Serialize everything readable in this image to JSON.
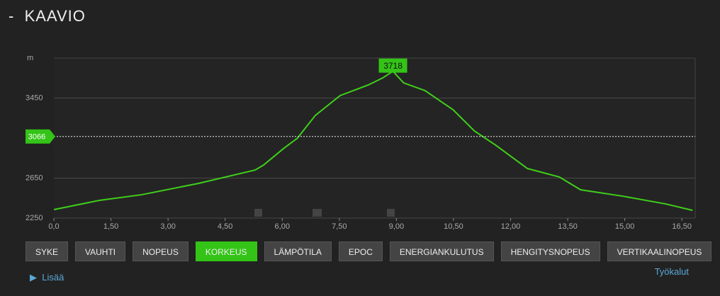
{
  "header": {
    "title": "KAAVIO"
  },
  "chart_data": {
    "type": "line",
    "y_label": "m",
    "color": "#3fcf1a",
    "x": [
      0,
      1.19,
      2.31,
      3.8,
      5.29,
      5.51,
      6.03,
      6.4,
      6.87,
      7.52,
      8.26,
      8.64,
      8.91,
      9.19,
      9.75,
      10.49,
      11.05,
      11.61,
      12.44,
      13.28,
      13.84,
      14.95,
      16.07,
      16.78
    ],
    "values": [
      2335,
      2427,
      2484,
      2597,
      2731,
      2781,
      2944,
      3050,
      3277,
      3475,
      3581,
      3652,
      3718,
      3602,
      3525,
      3333,
      3121,
      2979,
      2746,
      2661,
      2533,
      2469,
      2392,
      2328
    ],
    "xlim": [
      0,
      16.85
    ],
    "ylim": [
      2250,
      3850
    ],
    "xticks": [
      {
        "value": 0,
        "label": "0,0"
      },
      {
        "value": 1.5,
        "label": "1,50"
      },
      {
        "value": 3,
        "label": "3,00"
      },
      {
        "value": 4.5,
        "label": "4,50"
      },
      {
        "value": 6,
        "label": "6,00"
      },
      {
        "value": 7.5,
        "label": "7,50"
      },
      {
        "value": 9,
        "label": "9,00"
      },
      {
        "value": 10.5,
        "label": "10,50"
      },
      {
        "value": 12,
        "label": "12,00"
      },
      {
        "value": 13.5,
        "label": "13,50"
      },
      {
        "value": 15,
        "label": "15,00"
      },
      {
        "value": 16.5,
        "label": "16,50"
      }
    ],
    "yticks": [
      2250,
      2650,
      3450
    ],
    "grid": true,
    "marker": 3066,
    "peak": {
      "x": 8.91,
      "value": 3718
    }
  },
  "buttons": [
    "SYKE",
    "VAUHTI",
    "NOPEUS",
    "KORKEUS",
    "LÄMPÖTILA",
    "EPOC",
    "ENERGIANKULUTUS",
    "HENGITYSNOPEUS",
    "VERTIKAALINOPEUS"
  ],
  "active_button": 3,
  "links": {
    "more": "Lisää",
    "tools": "Työkalut"
  }
}
